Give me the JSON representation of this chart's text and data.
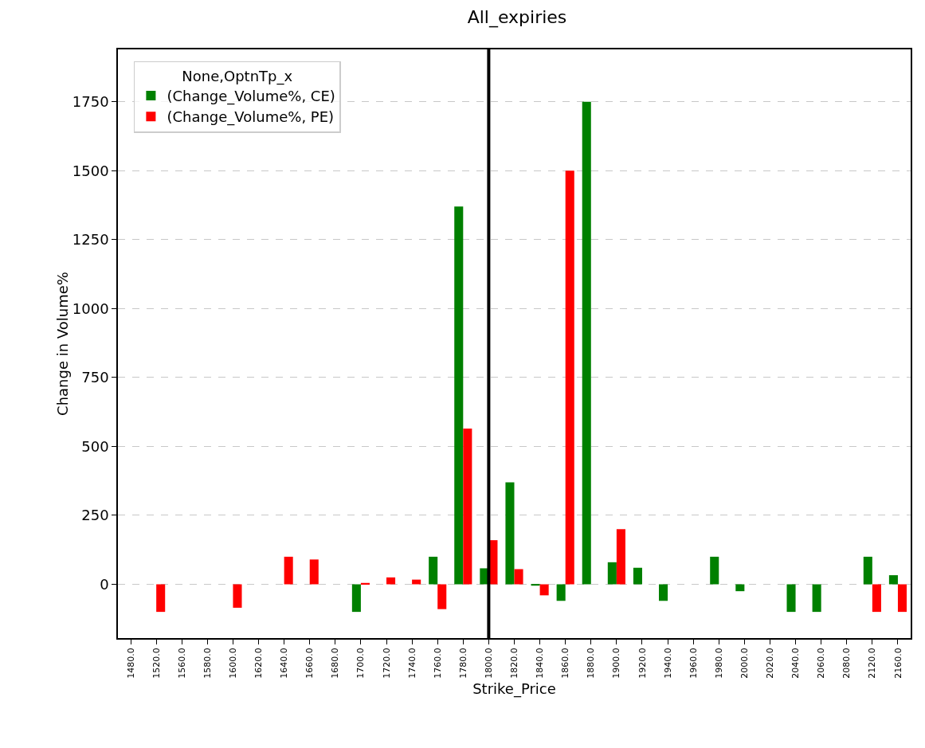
{
  "chart_data": {
    "type": "bar",
    "title": "All_expiries",
    "xlabel": "Strike_Price",
    "ylabel": "Change in Volume%",
    "legend_title": "None,OptnTp_x",
    "categories": [
      "1480.0",
      "1520.0",
      "1560.0",
      "1580.0",
      "1600.0",
      "1620.0",
      "1640.0",
      "1660.0",
      "1680.0",
      "1700.0",
      "1720.0",
      "1740.0",
      "1760.0",
      "1780.0",
      "1800.0",
      "1820.0",
      "1840.0",
      "1860.0",
      "1880.0",
      "1900.0",
      "1920.0",
      "1940.0",
      "1960.0",
      "1980.0",
      "2000.0",
      "2020.0",
      "2040.0",
      "2060.0",
      "2080.0",
      "2120.0",
      "2160.0"
    ],
    "series": [
      {
        "name": "(Change_Volume%, CE)",
        "color": "#008000",
        "values": [
          null,
          null,
          null,
          null,
          null,
          null,
          null,
          null,
          null,
          -100,
          null,
          null,
          100,
          1370,
          58,
          370,
          -5,
          -60,
          1750,
          80,
          60,
          -60,
          null,
          100,
          -25,
          null,
          -100,
          -100,
          null,
          100,
          33
        ]
      },
      {
        "name": "(Change_Volume%, PE)",
        "color": "#ff0000",
        "values": [
          null,
          -100,
          null,
          null,
          -85,
          null,
          100,
          90,
          null,
          5,
          25,
          17,
          -90,
          565,
          160,
          55,
          -40,
          1500,
          null,
          200,
          null,
          null,
          null,
          null,
          null,
          null,
          null,
          null,
          null,
          -100,
          -100
        ]
      }
    ],
    "ylim": [
      -195,
      1940
    ],
    "yticks": [
      0,
      250,
      500,
      750,
      1000,
      1250,
      1500,
      1750
    ],
    "grid": "y",
    "legend": "top left",
    "ref_lines": [
      {
        "axis": "x",
        "value": "1800.0",
        "color": "#000000"
      }
    ]
  }
}
